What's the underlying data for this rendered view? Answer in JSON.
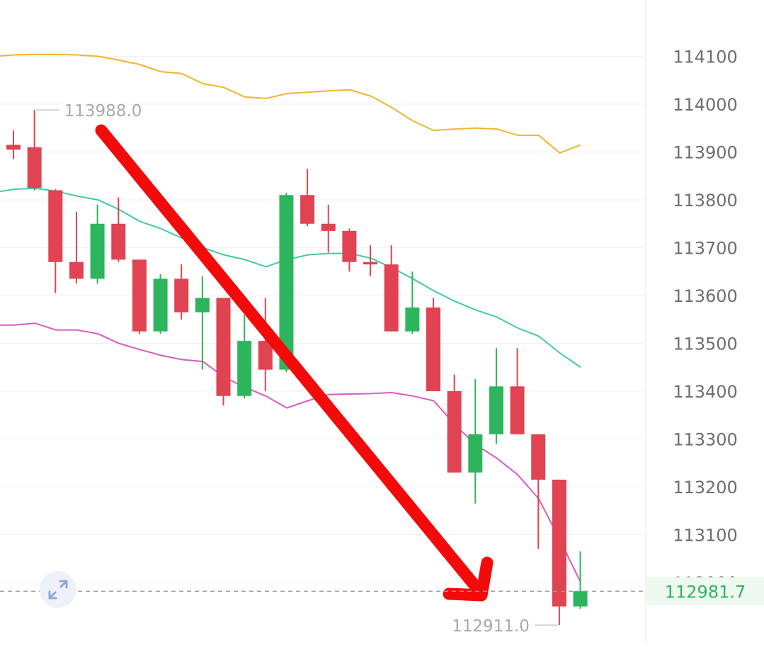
{
  "chart_data": {
    "type": "candlestick",
    "y_axis": {
      "position": "right",
      "ticks": [
        "114100",
        "114000",
        "113900",
        "113800",
        "113700",
        "113600",
        "113500",
        "113400",
        "113300",
        "113200",
        "113100",
        "113000"
      ],
      "ylim": [
        112860,
        114210
      ]
    },
    "current_price": {
      "label": "112981.7",
      "value": 112981.7
    },
    "high_marker": {
      "label": "113988.0",
      "value": 113988.0
    },
    "low_marker": {
      "label": "112911.0",
      "value": 112911.0
    },
    "candles": [
      {
        "o": 113915,
        "c": 113905,
        "h": 113945,
        "l": 113885
      },
      {
        "o": 113910,
        "c": 113825,
        "h": 113988,
        "l": 113820
      },
      {
        "o": 113820,
        "c": 113670,
        "h": 113822,
        "l": 113605
      },
      {
        "o": 113670,
        "c": 113635,
        "h": 113775,
        "l": 113625
      },
      {
        "o": 113635,
        "c": 113750,
        "h": 113790,
        "l": 113625
      },
      {
        "o": 113750,
        "c": 113675,
        "h": 113805,
        "l": 113670
      },
      {
        "o": 113675,
        "c": 113525,
        "h": 113675,
        "l": 113520
      },
      {
        "o": 113525,
        "c": 113635,
        "h": 113645,
        "l": 113520
      },
      {
        "o": 113635,
        "c": 113565,
        "h": 113665,
        "l": 113550
      },
      {
        "o": 113565,
        "c": 113595,
        "h": 113640,
        "l": 113445
      },
      {
        "o": 113595,
        "c": 113390,
        "h": 113595,
        "l": 113370
      },
      {
        "o": 113390,
        "c": 113505,
        "h": 113560,
        "l": 113385
      },
      {
        "o": 113505,
        "c": 113445,
        "h": 113595,
        "l": 113400
      },
      {
        "o": 113445,
        "c": 113810,
        "h": 113815,
        "l": 113440
      },
      {
        "o": 113810,
        "c": 113750,
        "h": 113865,
        "l": 113745
      },
      {
        "o": 113750,
        "c": 113735,
        "h": 113790,
        "l": 113690
      },
      {
        "o": 113735,
        "c": 113670,
        "h": 113740,
        "l": 113650
      },
      {
        "o": 113670,
        "c": 113665,
        "h": 113705,
        "l": 113640
      },
      {
        "o": 113665,
        "c": 113525,
        "h": 113705,
        "l": 113525
      },
      {
        "o": 113525,
        "c": 113575,
        "h": 113650,
        "l": 113520
      },
      {
        "o": 113575,
        "c": 113400,
        "h": 113595,
        "l": 113400
      },
      {
        "o": 113400,
        "c": 113230,
        "h": 113435,
        "l": 113230
      },
      {
        "o": 113230,
        "c": 113310,
        "h": 113425,
        "l": 113165
      },
      {
        "o": 113310,
        "c": 113410,
        "h": 113490,
        "l": 113290
      },
      {
        "o": 113410,
        "c": 113310,
        "h": 113490,
        "l": 113310
      },
      {
        "o": 113310,
        "c": 113215,
        "h": 113310,
        "l": 113070
      },
      {
        "o": 113215,
        "c": 112950,
        "h": 113215,
        "l": 112911
      },
      {
        "o": 112950,
        "c": 112982,
        "h": 113065,
        "l": 112945
      }
    ],
    "bands": {
      "upper": [
        114100,
        114103,
        114104,
        114104,
        114103,
        114100,
        114092,
        114083,
        114068,
        114064,
        114043,
        114035,
        114015,
        114012,
        114022,
        114025,
        114028,
        114030,
        114017,
        113993,
        113965,
        113945,
        113948,
        113950,
        113948,
        113935,
        113935,
        113898,
        113915
      ],
      "middle": [
        113815,
        113822,
        113824,
        113818,
        113808,
        113800,
        113780,
        113755,
        113740,
        113720,
        113700,
        113685,
        113675,
        113660,
        113675,
        113685,
        113688,
        113688,
        113678,
        113658,
        113635,
        113610,
        113588,
        113570,
        113555,
        113532,
        113515,
        113480,
        113450
      ],
      "lower": [
        113538,
        113538,
        113542,
        113528,
        113528,
        113520,
        113500,
        113487,
        113475,
        113466,
        113462,
        113430,
        113408,
        113390,
        113365,
        113380,
        113393,
        113394,
        113395,
        113397,
        113390,
        113380,
        113330,
        113288,
        113260,
        113225,
        113175,
        113090,
        113000
      ]
    },
    "colors": {
      "up": "#2db55d",
      "down": "#e04352",
      "upper_band": "#f0b62d",
      "middle_band": "#43c9a7",
      "lower_band": "#d95bc2",
      "annotation_arrow": "#f30b0b",
      "current_price_text": "#2db55d",
      "axis_text": "#6e6e6e",
      "marker_text": "#a9a9a9"
    },
    "annotation": {
      "type": "arrow",
      "direction": "down-right"
    },
    "icons": {
      "expand": "expand-icon"
    }
  }
}
